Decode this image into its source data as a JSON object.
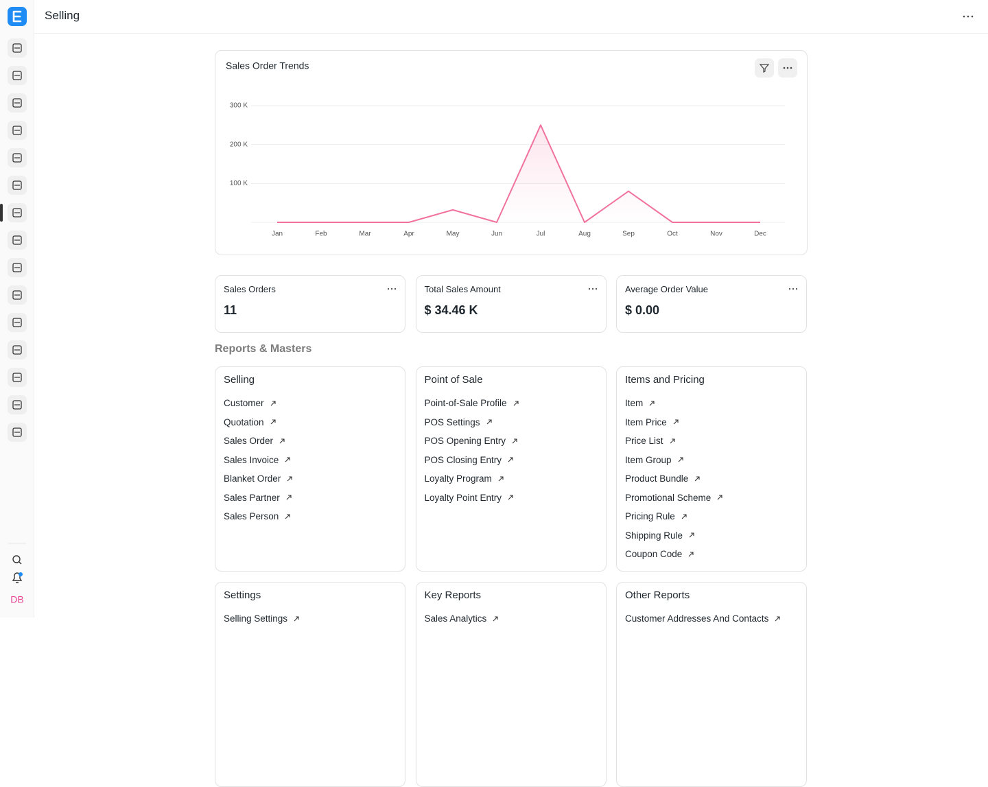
{
  "header": {
    "title": "Selling"
  },
  "sidebar": {
    "avatar": "DB"
  },
  "chart_data": {
    "type": "line",
    "title": "Sales Order Trends",
    "categories": [
      "Jan",
      "Feb",
      "Mar",
      "Apr",
      "May",
      "Jun",
      "Jul",
      "Aug",
      "Sep",
      "Oct",
      "Nov",
      "Dec"
    ],
    "values": [
      0,
      0,
      0,
      0,
      32000,
      0,
      250000,
      0,
      80000,
      0,
      0,
      0
    ],
    "color": "#f1729f",
    "ylim": [
      0,
      300000
    ],
    "yticks": [
      {
        "value": 100000,
        "label": "100 K"
      },
      {
        "value": 200000,
        "label": "200 K"
      },
      {
        "value": 300000,
        "label": "300 K"
      }
    ],
    "grid": true
  },
  "number_cards": [
    {
      "label": "Sales Orders",
      "value": "11"
    },
    {
      "label": "Total Sales Amount",
      "value": "$ 34.46 K"
    },
    {
      "label": "Average Order Value",
      "value": "$ 0.00"
    }
  ],
  "section_title": "Reports & Masters",
  "link_cards": [
    {
      "title": "Selling",
      "links": [
        "Customer",
        "Quotation",
        "Sales Order",
        "Sales Invoice",
        "Blanket Order",
        "Sales Partner",
        "Sales Person"
      ]
    },
    {
      "title": "Point of Sale",
      "links": [
        "Point-of-Sale Profile",
        "POS Settings",
        "POS Opening Entry",
        "POS Closing Entry",
        "Loyalty Program",
        "Loyalty Point Entry"
      ]
    },
    {
      "title": "Items and Pricing",
      "links": [
        "Item",
        "Item Price",
        "Price List",
        "Item Group",
        "Product Bundle",
        "Promotional Scheme",
        "Pricing Rule",
        "Shipping Rule",
        "Coupon Code"
      ]
    },
    {
      "title": "Settings",
      "links": [
        "Selling Settings"
      ]
    },
    {
      "title": "Key Reports",
      "links": [
        "Sales Analytics"
      ]
    },
    {
      "title": "Other Reports",
      "links": [
        "Customer Addresses And Contacts"
      ]
    }
  ]
}
